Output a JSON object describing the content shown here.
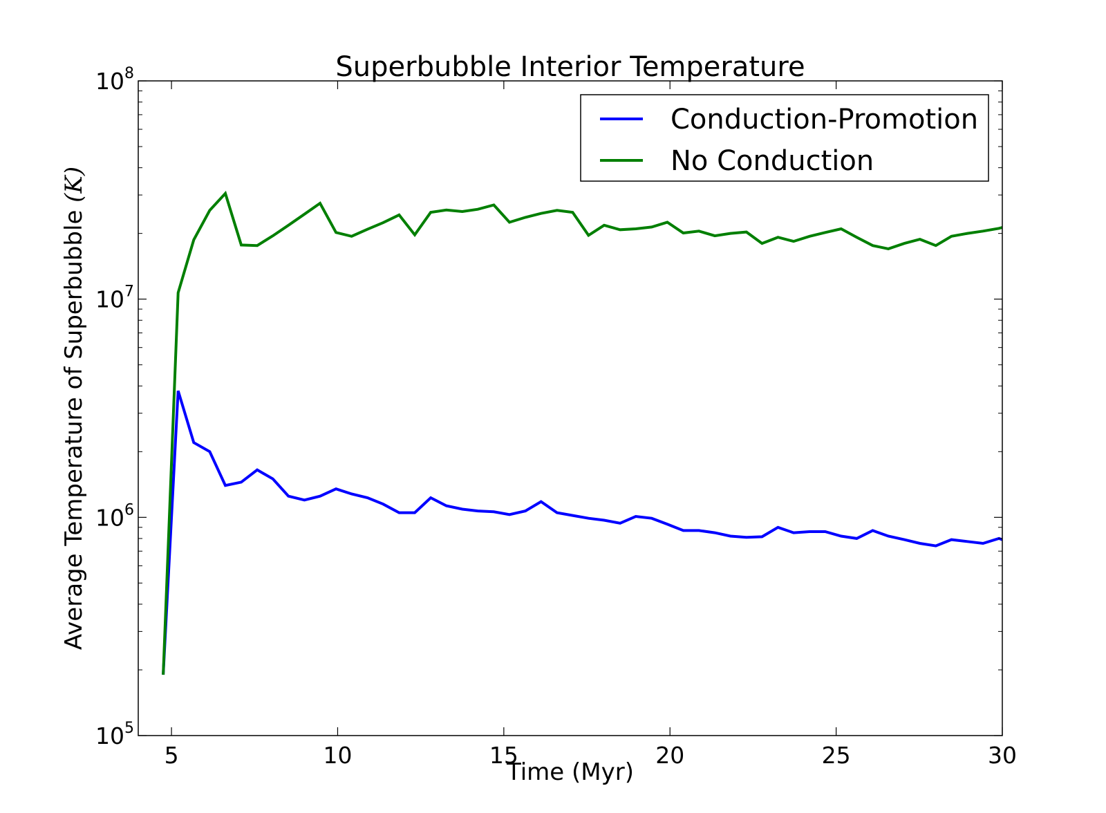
{
  "chart_data": {
    "type": "line",
    "title": "Superbubble Interior Temperature",
    "xlabel": "Time (Myr)",
    "ylabel_text": "Average Temperature of Superbubble ",
    "ylabel_unit": "(K)",
    "y_scale": "log",
    "xlim": [
      4,
      30
    ],
    "ylim": [
      100000,
      100000000
    ],
    "x_ticks": [
      {
        "value": 5,
        "label": "5"
      },
      {
        "value": 10,
        "label": "10"
      },
      {
        "value": 15,
        "label": "15"
      },
      {
        "value": 20,
        "label": "20"
      },
      {
        "value": 25,
        "label": "25"
      },
      {
        "value": 30,
        "label": "30"
      }
    ],
    "y_ticks": [
      {
        "value": 100000,
        "base": "10",
        "exp": "5"
      },
      {
        "value": 1000000,
        "base": "10",
        "exp": "6"
      },
      {
        "value": 10000000,
        "base": "10",
        "exp": "7"
      },
      {
        "value": 100000000,
        "base": "10",
        "exp": "8"
      }
    ],
    "grid": false,
    "legend_position": "top-right",
    "series": [
      {
        "name": "Conduction-Promotion",
        "color": "#0000ff",
        "x": [
          4.75,
          5.2,
          5.67,
          6.15,
          6.62,
          7.1,
          7.58,
          8.05,
          8.52,
          9.0,
          9.47,
          9.95,
          10.42,
          10.9,
          11.37,
          11.85,
          12.32,
          12.8,
          13.27,
          13.75,
          14.22,
          14.7,
          15.17,
          15.65,
          16.12,
          16.6,
          17.07,
          17.55,
          18.02,
          18.5,
          18.97,
          19.45,
          19.92,
          20.4,
          20.87,
          21.35,
          21.82,
          22.3,
          22.77,
          23.25,
          23.72,
          24.2,
          24.67,
          25.15,
          25.62,
          26.1,
          26.57,
          27.05,
          27.52,
          28.0,
          28.47,
          28.95,
          29.42,
          29.9,
          30.0
        ],
        "y": [
          190000,
          3800000,
          2200000,
          2000000,
          1400000,
          1450000,
          1650000,
          1500000,
          1250000,
          1200000,
          1250000,
          1350000,
          1280000,
          1230000,
          1150000,
          1050000,
          1050000,
          1230000,
          1130000,
          1090000,
          1070000,
          1060000,
          1030000,
          1070000,
          1180000,
          1050000,
          1020000,
          990000,
          970000,
          940000,
          1010000,
          990000,
          930000,
          870000,
          870000,
          850000,
          820000,
          810000,
          815000,
          900000,
          850000,
          860000,
          860000,
          820000,
          800000,
          870000,
          820000,
          790000,
          760000,
          740000,
          790000,
          775000,
          760000,
          800000,
          790000
        ]
      },
      {
        "name": "No Conduction",
        "color": "#007f00",
        "x": [
          4.75,
          5.2,
          5.67,
          6.15,
          6.62,
          7.1,
          7.58,
          8.05,
          8.52,
          9.0,
          9.47,
          9.95,
          10.42,
          10.9,
          11.37,
          11.85,
          12.32,
          12.8,
          13.27,
          13.75,
          14.22,
          14.7,
          15.17,
          15.65,
          16.12,
          16.6,
          17.07,
          17.55,
          18.02,
          18.5,
          18.97,
          19.45,
          19.92,
          20.4,
          20.87,
          21.35,
          21.82,
          22.3,
          22.77,
          23.25,
          23.72,
          24.2,
          24.67,
          25.15,
          25.62,
          26.1,
          26.57,
          27.05,
          27.52,
          28.0,
          28.47,
          28.95,
          29.42,
          29.9,
          30.0
        ],
        "y": [
          190000,
          10700000,
          18700000,
          25500000,
          30500000,
          17700000,
          17600000,
          19500000,
          21800000,
          24500000,
          27500000,
          20200000,
          19400000,
          20900000,
          22400000,
          24300000,
          19700000,
          25000000,
          25600000,
          25200000,
          25800000,
          27000000,
          22500000,
          23700000,
          24700000,
          25500000,
          25000000,
          19600000,
          21800000,
          20800000,
          21000000,
          21400000,
          22500000,
          20100000,
          20500000,
          19500000,
          20000000,
          20300000,
          18000000,
          19200000,
          18400000,
          19400000,
          20200000,
          21000000,
          19200000,
          17600000,
          17000000,
          18000000,
          18800000,
          17600000,
          19400000,
          20000000,
          20500000,
          21100000,
          21300000
        ]
      }
    ]
  }
}
